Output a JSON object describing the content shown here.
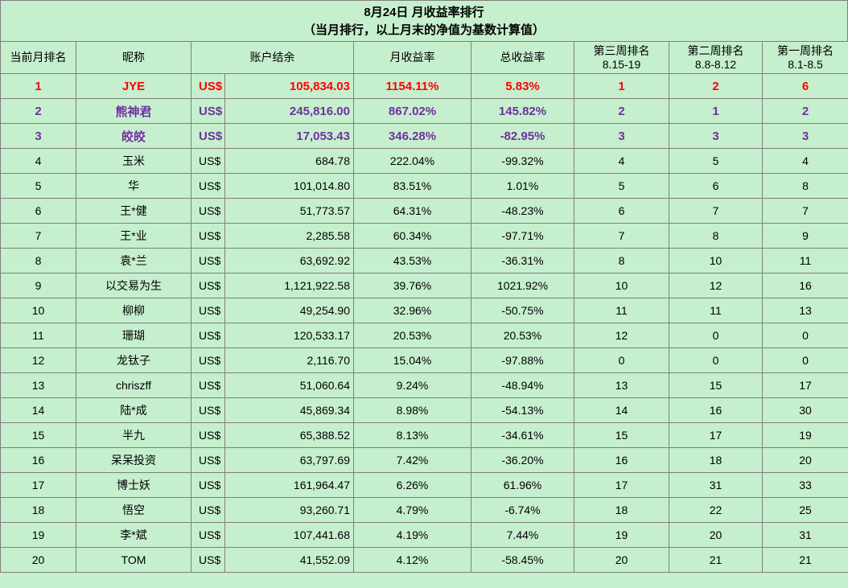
{
  "title": {
    "line1": "8月24日 月收益率排行",
    "line2": "（当月排行，以上月末的净值为基数计算值）"
  },
  "headers": {
    "rank": "当前月排名",
    "nick": "昵称",
    "balance": "账户结余",
    "monthly_return": "月收益率",
    "total_return": "总收益率",
    "week3_title": "第三周排名",
    "week3_range": "8.15-19",
    "week2_title": "第二周排名",
    "week2_range": "8.8-8.12",
    "week1_title": "第一周排名",
    "week1_range": "8.1-8.5"
  },
  "rows": [
    {
      "rank": "1",
      "nick": "JYE",
      "cur": "US$",
      "balance": "105,834.03",
      "monthly": "1154.11%",
      "total": "5.83%",
      "w3": "1",
      "w2": "2",
      "w1": "6"
    },
    {
      "rank": "2",
      "nick": "熊神君",
      "cur": "US$",
      "balance": "245,816.00",
      "monthly": "867.02%",
      "total": "145.82%",
      "w3": "2",
      "w2": "1",
      "w1": "2"
    },
    {
      "rank": "3",
      "nick": "皎皎",
      "cur": "US$",
      "balance": "17,053.43",
      "monthly": "346.28%",
      "total": "-82.95%",
      "w3": "3",
      "w2": "3",
      "w1": "3"
    },
    {
      "rank": "4",
      "nick": "玉米",
      "cur": "US$",
      "balance": "684.78",
      "monthly": "222.04%",
      "total": "-99.32%",
      "w3": "4",
      "w2": "5",
      "w1": "4"
    },
    {
      "rank": "5",
      "nick": "华",
      "cur": "US$",
      "balance": "101,014.80",
      "monthly": "83.51%",
      "total": "1.01%",
      "w3": "5",
      "w2": "6",
      "w1": "8"
    },
    {
      "rank": "6",
      "nick": "王*健",
      "cur": "US$",
      "balance": "51,773.57",
      "monthly": "64.31%",
      "total": "-48.23%",
      "w3": "6",
      "w2": "7",
      "w1": "7"
    },
    {
      "rank": "7",
      "nick": "王*业",
      "cur": "US$",
      "balance": "2,285.58",
      "monthly": "60.34%",
      "total": "-97.71%",
      "w3": "7",
      "w2": "8",
      "w1": "9"
    },
    {
      "rank": "8",
      "nick": "袁*兰",
      "cur": "US$",
      "balance": "63,692.92",
      "monthly": "43.53%",
      "total": "-36.31%",
      "w3": "8",
      "w2": "10",
      "w1": "11"
    },
    {
      "rank": "9",
      "nick": "以交易为生",
      "cur": "US$",
      "balance": "1,121,922.58",
      "monthly": "39.76%",
      "total": "1021.92%",
      "w3": "10",
      "w2": "12",
      "w1": "16"
    },
    {
      "rank": "10",
      "nick": "柳柳",
      "cur": "US$",
      "balance": "49,254.90",
      "monthly": "32.96%",
      "total": "-50.75%",
      "w3": "11",
      "w2": "11",
      "w1": "13"
    },
    {
      "rank": "11",
      "nick": "珊瑚",
      "cur": "US$",
      "balance": "120,533.17",
      "monthly": "20.53%",
      "total": "20.53%",
      "w3": "12",
      "w2": "0",
      "w1": "0"
    },
    {
      "rank": "12",
      "nick": "龙钛子",
      "cur": "US$",
      "balance": "2,116.70",
      "monthly": "15.04%",
      "total": "-97.88%",
      "w3": "0",
      "w2": "0",
      "w1": "0"
    },
    {
      "rank": "13",
      "nick": "chriszff",
      "cur": "US$",
      "balance": "51,060.64",
      "monthly": "9.24%",
      "total": "-48.94%",
      "w3": "13",
      "w2": "15",
      "w1": "17"
    },
    {
      "rank": "14",
      "nick": "陆*成",
      "cur": "US$",
      "balance": "45,869.34",
      "monthly": "8.98%",
      "total": "-54.13%",
      "w3": "14",
      "w2": "16",
      "w1": "30"
    },
    {
      "rank": "15",
      "nick": "半九",
      "cur": "US$",
      "balance": "65,388.52",
      "monthly": "8.13%",
      "total": "-34.61%",
      "w3": "15",
      "w2": "17",
      "w1": "19"
    },
    {
      "rank": "16",
      "nick": "呆呆投资",
      "cur": "US$",
      "balance": "63,797.69",
      "monthly": "7.42%",
      "total": "-36.20%",
      "w3": "16",
      "w2": "18",
      "w1": "20"
    },
    {
      "rank": "17",
      "nick": "博士妖",
      "cur": "US$",
      "balance": "161,964.47",
      "monthly": "6.26%",
      "total": "61.96%",
      "w3": "17",
      "w2": "31",
      "w1": "33"
    },
    {
      "rank": "18",
      "nick": "悟空",
      "cur": "US$",
      "balance": "93,260.71",
      "monthly": "4.79%",
      "total": "-6.74%",
      "w3": "18",
      "w2": "22",
      "w1": "25"
    },
    {
      "rank": "19",
      "nick": "李*斌",
      "cur": "US$",
      "balance": "107,441.68",
      "monthly": "4.19%",
      "total": "7.44%",
      "w3": "19",
      "w2": "20",
      "w1": "31"
    },
    {
      "rank": "20",
      "nick": "TOM",
      "cur": "US$",
      "balance": "41,552.09",
      "monthly": "4.12%",
      "total": "-58.45%",
      "w3": "20",
      "w2": "21",
      "w1": "21"
    }
  ],
  "colors": {
    "background": "#c6efce",
    "grid": "#7f7f7f",
    "rank1": "#ff0000",
    "rank2_3": "#7030a0"
  }
}
